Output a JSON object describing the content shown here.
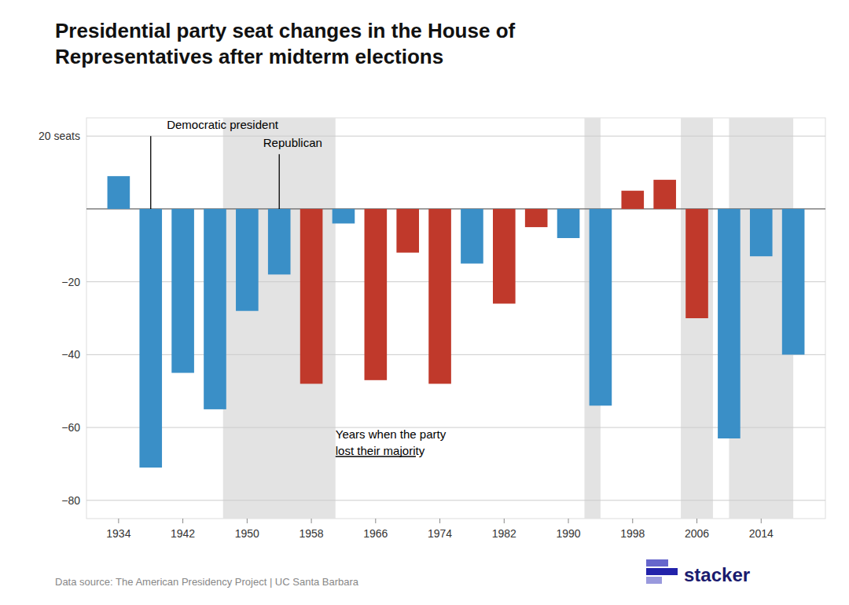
{
  "chart_data": {
    "type": "bar",
    "title": "Presidential party seat changes in the House of\nRepresentatives after midterm elections",
    "x": [
      1934,
      1938,
      1942,
      1946,
      1950,
      1954,
      1958,
      1962,
      1966,
      1970,
      1974,
      1978,
      1982,
      1986,
      1990,
      1994,
      1998,
      2002,
      2006,
      2010,
      2014,
      2018
    ],
    "values": [
      9,
      -71,
      -45,
      -55,
      -28,
      -18,
      -48,
      -4,
      -47,
      -12,
      -48,
      -15,
      -26,
      -5,
      -8,
      -54,
      5,
      8,
      -30,
      -63,
      -13,
      -40
    ],
    "colors": [
      "#3a8fc7",
      "#3a8fc7",
      "#3a8fc7",
      "#3a8fc7",
      "#3a8fc7",
      "#3a8fc7",
      "#c0392b",
      "#3a8fc7",
      "#c0392b",
      "#c0392b",
      "#c0392b",
      "#3a8fc7",
      "#c0392b",
      "#c0392b",
      "#3a8fc7",
      "#3a8fc7",
      "#c0392b",
      "#c0392b",
      "#c0392b",
      "#3a8fc7",
      "#3a8fc7",
      "#3a8fc7"
    ],
    "shaded_regions": [
      [
        1947,
        1953
      ],
      [
        1953,
        1961
      ],
      [
        1992,
        1994
      ],
      [
        2004,
        2008
      ],
      [
        2010,
        2018
      ]
    ],
    "xlim": [
      1930,
      2022
    ],
    "xticks": [
      1934,
      1942,
      1950,
      1958,
      1966,
      1974,
      1982,
      1990,
      1998,
      2006,
      2014
    ],
    "ylim": [
      -85,
      25
    ],
    "yticks": [
      {
        "value": 20,
        "label": "20 seats"
      },
      {
        "value": 0,
        "label": null
      },
      {
        "value": -20,
        "label": "−20"
      },
      {
        "value": -40,
        "label": "−40"
      },
      {
        "value": -60,
        "label": "−60"
      },
      {
        "value": -80,
        "label": "−80"
      }
    ],
    "grid": true,
    "annotations": [
      "Democratic president",
      "Republican",
      "Years when the party\nlost their majority"
    ],
    "source": "Data source: The American Presidency Project | UC Santa Barbara",
    "credit": "stacker"
  }
}
